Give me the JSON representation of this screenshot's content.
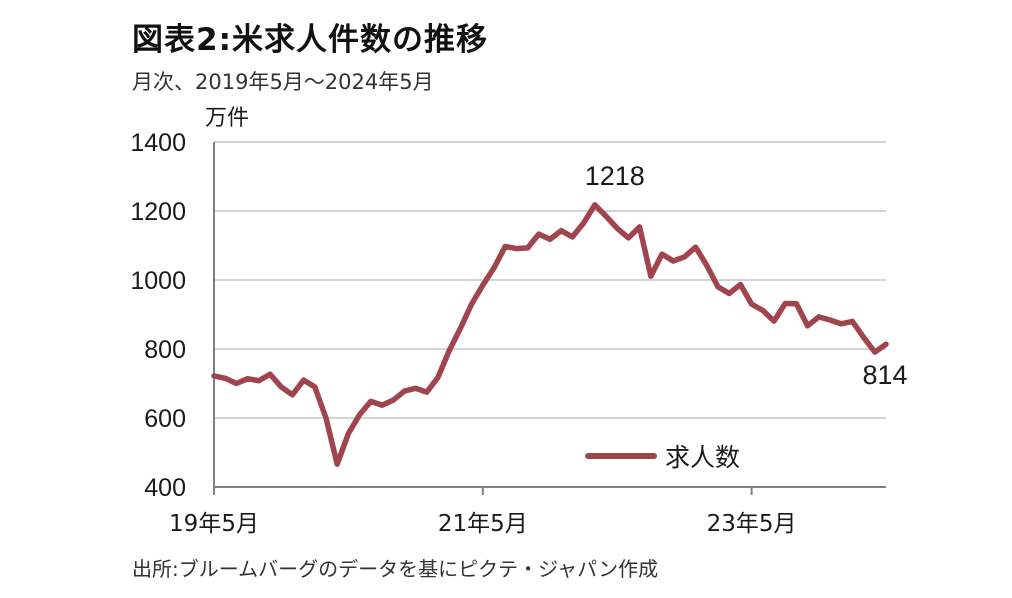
{
  "title": "図表2:米求人件数の推移",
  "subtitle": "月次、2019年5月～2024年5月",
  "source": "出所:ブルームバーグのデータを基にピクテ・ジャパン作成",
  "colors": {
    "series": "#a0454d",
    "grid": "#d4d4d4",
    "axis": "#808080"
  },
  "chart_data": {
    "type": "line",
    "title": "図表2:米求人件数の推移",
    "ylabel": "万件",
    "ylim": [
      400,
      1400
    ],
    "yticks": [
      "400",
      "600",
      "800",
      "1000",
      "1200",
      "1400"
    ],
    "xtick_labels": [
      {
        "label": "19年5月",
        "index": 0
      },
      {
        "label": "21年5月",
        "index": 24
      },
      {
        "label": "23年5月",
        "index": 48
      }
    ],
    "grid": "horizontal",
    "legend": {
      "position": "bottom-right"
    },
    "series": [
      {
        "name": "求人数",
        "x": [
          "2019-05",
          "2019-06",
          "2019-07",
          "2019-08",
          "2019-09",
          "2019-10",
          "2019-11",
          "2019-12",
          "2020-01",
          "2020-02",
          "2020-03",
          "2020-04",
          "2020-05",
          "2020-06",
          "2020-07",
          "2020-08",
          "2020-09",
          "2020-10",
          "2020-11",
          "2020-12",
          "2021-01",
          "2021-02",
          "2021-03",
          "2021-04",
          "2021-05",
          "2021-06",
          "2021-07",
          "2021-08",
          "2021-09",
          "2021-10",
          "2021-11",
          "2021-12",
          "2022-01",
          "2022-02",
          "2022-03",
          "2022-04",
          "2022-05",
          "2022-06",
          "2022-07",
          "2022-08",
          "2022-09",
          "2022-10",
          "2022-11",
          "2022-12",
          "2023-01",
          "2023-02",
          "2023-03",
          "2023-04",
          "2023-05",
          "2023-06",
          "2023-07",
          "2023-08",
          "2023-09",
          "2023-10",
          "2023-11",
          "2023-12",
          "2024-01",
          "2024-02",
          "2024-03",
          "2024-04",
          "2024-05"
        ],
        "values": [
          722,
          715,
          700,
          714,
          708,
          727,
          690,
          667,
          710,
          690,
          600,
          466,
          555,
          610,
          648,
          637,
          652,
          678,
          686,
          675,
          718,
          795,
          860,
          930,
          985,
          1035,
          1097,
          1091,
          1093,
          1133,
          1118,
          1143,
          1125,
          1165,
          1218,
          1185,
          1150,
          1122,
          1154,
          1011,
          1075,
          1055,
          1067,
          1095,
          1042,
          980,
          961,
          987,
          930,
          912,
          881,
          932,
          931,
          867,
          893,
          884,
          873,
          880,
          834,
          791,
          814
        ]
      }
    ],
    "annotations": [
      {
        "text": "1218",
        "index": 34
      },
      {
        "text": "814",
        "index": 60
      }
    ]
  }
}
